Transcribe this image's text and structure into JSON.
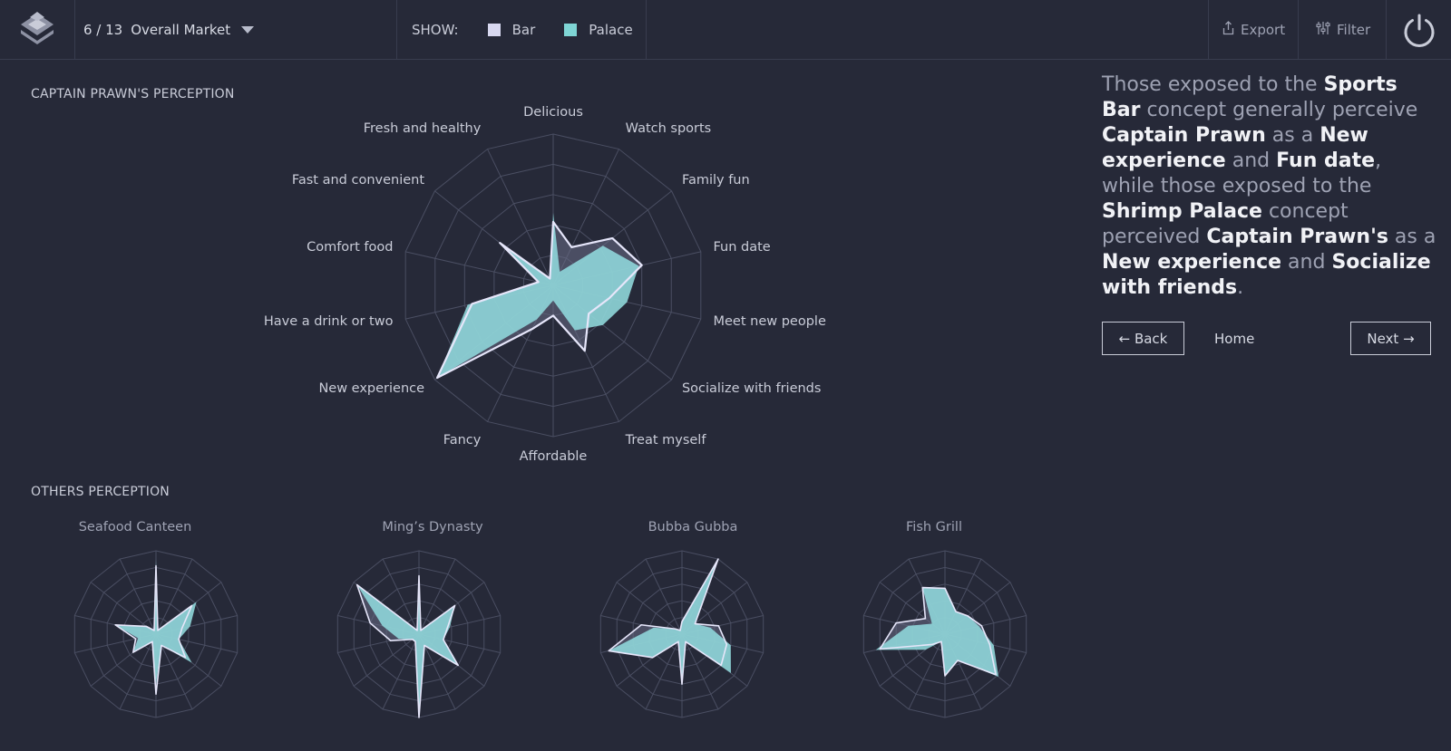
{
  "header": {
    "page_index": "6 / 13",
    "market": "Overall Market",
    "show_label": "SHOW:",
    "legend": [
      {
        "label": "Bar",
        "color": "#d8d8f0"
      },
      {
        "label": "Palace",
        "color": "#7fd5d5"
      }
    ],
    "export_label": "Export",
    "filter_label": "Filter"
  },
  "main_chart": {
    "section_title": "CAPTAIN PRAWN'S PERCEPTION",
    "axes": [
      "Delicious",
      "Watch sports",
      "Family fun",
      "Fun date",
      "Meet new people",
      "Socialize with friends",
      "Treat myself",
      "Affordable",
      "Fancy",
      "New experience",
      "Have a drink or two",
      "Comfort food",
      "Fast and convenient",
      "Fresh and healthy"
    ]
  },
  "others": {
    "section_title": "OTHERS PERCEPTION",
    "titles": [
      "Seafood Canteen",
      "Ming’s Dynasty",
      "Bubba Gubba",
      "Fish Grill"
    ]
  },
  "insight": {
    "segments": [
      {
        "t": "Those exposed to the ",
        "b": false
      },
      {
        "t": "Sports Bar",
        "b": true
      },
      {
        "t": " concept generally perceive ",
        "b": false
      },
      {
        "t": "Captain Prawn",
        "b": true
      },
      {
        "t": " as a ",
        "b": false
      },
      {
        "t": "New experience",
        "b": true
      },
      {
        "t": " and ",
        "b": false
      },
      {
        "t": "Fun date",
        "b": true
      },
      {
        "t": ", while those exposed to the ",
        "b": false
      },
      {
        "t": "Shrimp Palace",
        "b": true
      },
      {
        "t": " concept perceived ",
        "b": false
      },
      {
        "t": "Captain Prawn's",
        "b": true
      },
      {
        "t": " as a ",
        "b": false
      },
      {
        "t": "New experience",
        "b": true
      },
      {
        "t": " and ",
        "b": false
      },
      {
        "t": "Socialize with friends",
        "b": true
      },
      {
        "t": ".",
        "b": false
      }
    ]
  },
  "nav": {
    "back": "← Back",
    "home": "Home",
    "next": "Next →"
  },
  "chart_data": [
    {
      "type": "radar",
      "name": "Captain Prawn's perception",
      "categories": [
        "Delicious",
        "Watch sports",
        "Family fun",
        "Fun date",
        "Meet new people",
        "Socialize with friends",
        "Treat myself",
        "Affordable",
        "Fancy",
        "New experience",
        "Have a drink or two",
        "Comfort food",
        "Fast and convenient",
        "Fresh and healthy"
      ],
      "rlim": [
        0,
        1
      ],
      "series": [
        {
          "name": "Bar",
          "color": "#d8d8f0",
          "values": [
            0.42,
            0.28,
            0.5,
            0.6,
            0.38,
            0.3,
            0.48,
            0.2,
            0.32,
            0.98,
            0.55,
            0.1,
            0.45,
            0.05
          ]
        },
        {
          "name": "Palace",
          "color": "#7fd5d5",
          "values": [
            0.48,
            0.1,
            0.42,
            0.58,
            0.5,
            0.42,
            0.33,
            0.1,
            0.25,
            0.98,
            0.58,
            0.1,
            0.45,
            0.05
          ]
        }
      ]
    },
    {
      "type": "radar",
      "name": "Seafood Canteen",
      "categories": [
        "Delicious",
        "Watch sports",
        "Family fun",
        "Fun date",
        "Meet new people",
        "Socialize with friends",
        "Treat myself",
        "Affordable",
        "Fancy",
        "New experience",
        "Have a drink or two",
        "Comfort food",
        "Fast and convenient",
        "Fresh and healthy"
      ],
      "rlim": [
        0,
        1
      ],
      "series": [
        {
          "name": "Bar",
          "values": [
            0.82,
            0.05,
            0.55,
            0.32,
            0.28,
            0.45,
            0.15,
            0.72,
            0.1,
            0.35,
            0.25,
            0.5,
            0.15,
            0.05
          ]
        },
        {
          "name": "Palace",
          "values": [
            0.9,
            0.05,
            0.62,
            0.42,
            0.28,
            0.55,
            0.15,
            0.6,
            0.1,
            0.35,
            0.22,
            0.5,
            0.15,
            0.05
          ]
        }
      ]
    },
    {
      "type": "radar",
      "name": "Ming’s Dynasty",
      "categories": [
        "Delicious",
        "Watch sports",
        "Family fun",
        "Fun date",
        "Meet new people",
        "Socialize with friends",
        "Treat myself",
        "Affordable",
        "Fancy",
        "New experience",
        "Have a drink or two",
        "Comfort food",
        "Fast and convenient",
        "Fresh and healthy"
      ],
      "rlim": [
        0,
        1
      ],
      "series": [
        {
          "name": "Bar",
          "values": [
            0.7,
            0.05,
            0.55,
            0.35,
            0.3,
            0.6,
            0.15,
            1.0,
            0.1,
            0.1,
            0.35,
            0.6,
            0.95,
            0.05
          ]
        },
        {
          "name": "Palace",
          "values": [
            0.7,
            0.05,
            0.55,
            0.38,
            0.3,
            0.6,
            0.15,
            1.0,
            0.1,
            0.1,
            0.25,
            0.45,
            0.95,
            0.05
          ]
        }
      ]
    },
    {
      "type": "radar",
      "name": "Bubba Gubba",
      "categories": [
        "Delicious",
        "Watch sports",
        "Family fun",
        "Fun date",
        "Meet new people",
        "Socialize with friends",
        "Treat myself",
        "Affordable",
        "Fancy",
        "New experience",
        "Have a drink or two",
        "Comfort food",
        "Fast and convenient",
        "Fresh and healthy"
      ],
      "rlim": [
        0,
        1
      ],
      "series": [
        {
          "name": "Bar",
          "values": [
            0.15,
            1.0,
            0.2,
            0.45,
            0.55,
            0.6,
            0.1,
            0.6,
            0.1,
            0.45,
            0.9,
            0.5,
            0.1,
            0.05
          ]
        },
        {
          "name": "Palace",
          "values": [
            0.15,
            1.0,
            0.2,
            0.35,
            0.6,
            0.75,
            0.1,
            0.6,
            0.1,
            0.45,
            0.9,
            0.35,
            0.1,
            0.05
          ]
        }
      ]
    },
    {
      "type": "radar",
      "name": "Fish Grill",
      "categories": [
        "Delicious",
        "Watch sports",
        "Family fun",
        "Fun date",
        "Meet new people",
        "Socialize with friends",
        "Treat myself",
        "Affordable",
        "Fancy",
        "New experience",
        "Have a drink or two",
        "Comfort food",
        "Fast and convenient",
        "Fresh and healthy"
      ],
      "rlim": [
        0,
        1
      ],
      "series": [
        {
          "name": "Bar",
          "values": [
            0.55,
            0.3,
            0.35,
            0.45,
            0.55,
            0.78,
            0.35,
            0.5,
            0.1,
            0.2,
            0.8,
            0.6,
            0.3,
            0.62
          ]
        },
        {
          "name": "Palace",
          "values": [
            0.55,
            0.3,
            0.35,
            0.42,
            0.6,
            0.82,
            0.35,
            0.5,
            0.1,
            0.3,
            0.85,
            0.45,
            0.2,
            0.62
          ]
        }
      ]
    }
  ]
}
